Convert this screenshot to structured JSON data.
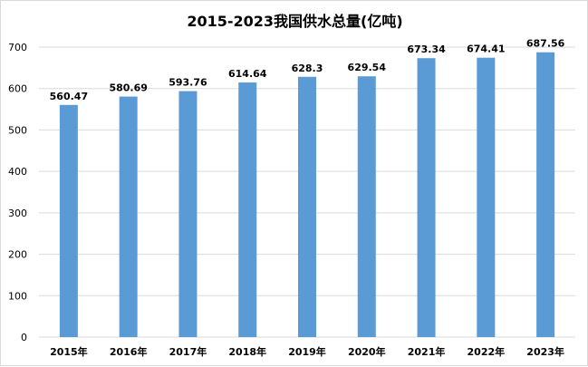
{
  "chart_data": {
    "type": "bar",
    "title": "2015-2023我国供水总量(亿吨)",
    "categories": [
      "2015年",
      "2016年",
      "2017年",
      "2018年",
      "2019年",
      "2020年",
      "2021年",
      "2022年",
      "2023年"
    ],
    "values": [
      560.47,
      580.69,
      593.76,
      614.64,
      628.3,
      629.54,
      673.34,
      674.41,
      687.56
    ],
    "data_labels": [
      "560.47",
      "580.69",
      "593.76",
      "614.64",
      "628.3",
      "629.54",
      "673.34",
      "674.41",
      "687.56"
    ],
    "ylim": [
      0,
      700
    ],
    "yticks": [
      0,
      100,
      200,
      300,
      400,
      500,
      600,
      700
    ],
    "xlabel": "",
    "ylabel": "",
    "grid": true,
    "bar_color": "#5b9bd5"
  }
}
